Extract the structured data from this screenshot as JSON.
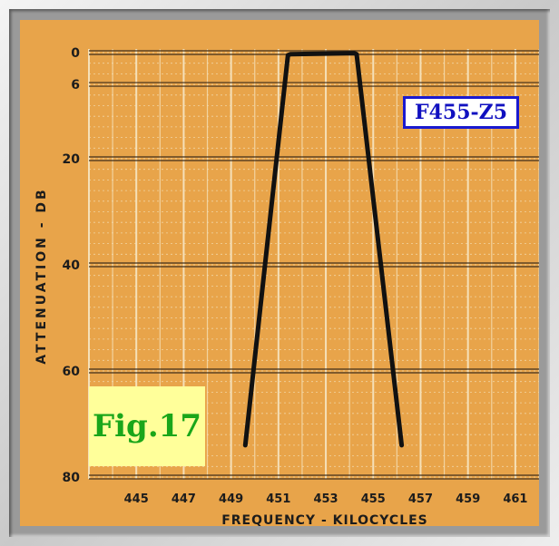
{
  "chart_data": {
    "type": "line",
    "title": "",
    "xlabel": "FREQUENCY - KILOCYCLES",
    "ylabel": "ATTENUATION - DB",
    "x_ticks": [
      "445",
      "447",
      "449",
      "451",
      "453",
      "455",
      "457",
      "459",
      "461"
    ],
    "y_ticks": [
      "0",
      "6",
      "20",
      "40",
      "60",
      "80"
    ],
    "xlim": [
      443,
      462
    ],
    "ylim": [
      0,
      80
    ],
    "y_inverted": true,
    "grid": true,
    "series": [
      {
        "x": [
          449.6,
          451.4,
          451.5,
          454.2,
          454.3,
          456.2
        ],
        "y": [
          74,
          0.5,
          0.3,
          0.1,
          0.3,
          74
        ]
      }
    ],
    "annotations": {
      "model": "F455-Z5",
      "figure": "Fig.17"
    },
    "colors": {
      "background": "#e8a44a",
      "curve": "#111111",
      "model_border": "#1a1ad0",
      "model_text": "#1010c0",
      "figure_bg": "#ffff9a",
      "figure_text": "#1aa61a"
    }
  }
}
